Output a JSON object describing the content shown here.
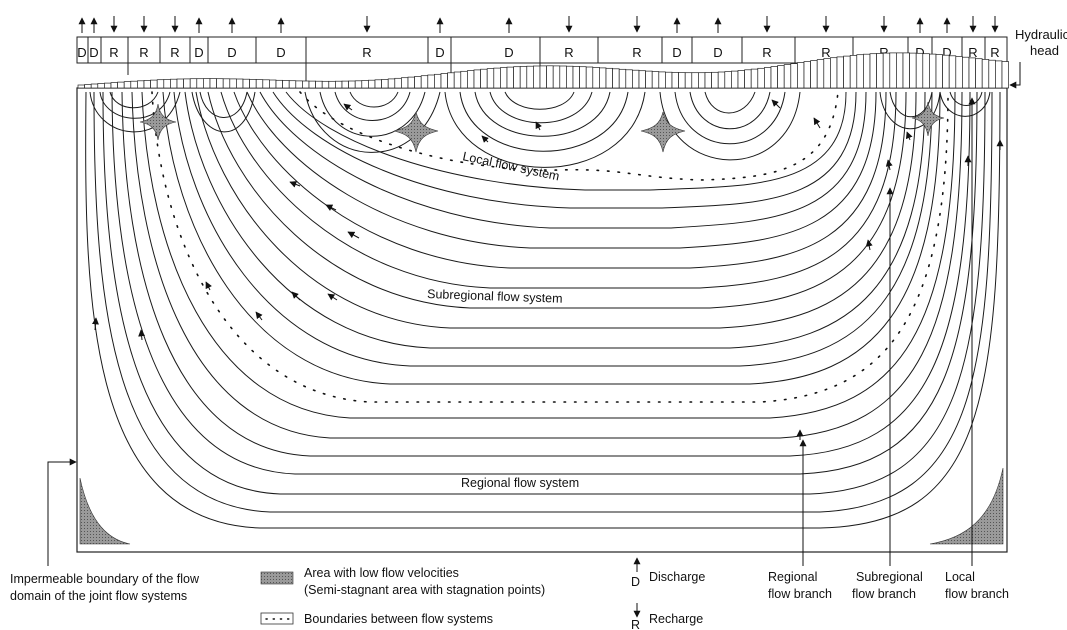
{
  "title": "",
  "top_zones": [
    "D",
    "D",
    "R",
    "R",
    "R",
    "D",
    "D",
    "D",
    "R",
    "D",
    "D",
    "R",
    "R",
    "D",
    "D",
    "R",
    "R",
    "R",
    "D",
    "D",
    "R",
    "R"
  ],
  "labels": {
    "hydraulic_head_line1": "Hydraulic",
    "hydraulic_head_line2": "head",
    "local_flow_system": "Local flow system",
    "subregional_flow_system": "Subregional flow system",
    "regional_flow_system": "Regional flow system"
  },
  "bottom_labels": {
    "impermeable_line1": "Impermeable boundary of the flow",
    "impermeable_line2": "domain of the joint flow systems",
    "regional_branch_line1": "Regional",
    "regional_branch_line2": "flow branch",
    "subregional_branch_line1": "Subregional",
    "subregional_branch_line2": "flow branch",
    "local_branch_line1": "Local",
    "local_branch_line2": "flow branch"
  },
  "legend": {
    "low_velocity_line1": "Area with low flow velocities",
    "low_velocity_line2": "(Semi-stagnant area with stagnation points)",
    "boundaries": "Boundaries between flow systems",
    "discharge_letter": "D",
    "discharge": "Discharge",
    "recharge_letter": "R",
    "recharge": "Recharge"
  },
  "colors": {
    "line": "#1a1a1a",
    "stagnant_fill": "#8c8c8c"
  }
}
